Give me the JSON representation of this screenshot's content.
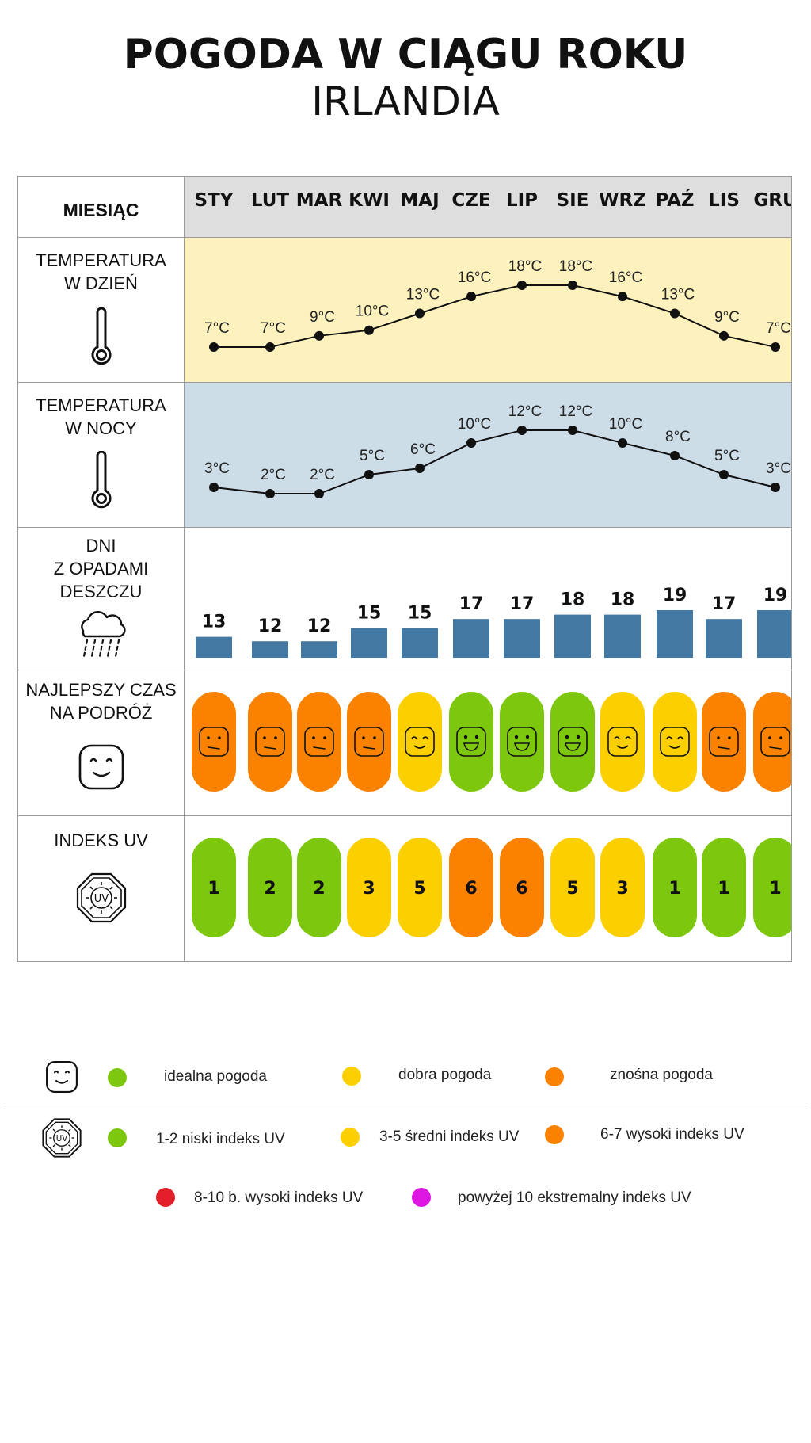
{
  "header": {
    "title": "POGODA W CIĄGU ROKU",
    "subtitle": "IRLANDIA"
  },
  "rows": {
    "month_label": "MIESIĄC",
    "day_temp_label": "TEMPERATURA\nW DZIEŃ",
    "night_temp_label": "TEMPERATURA\nW NOCY",
    "rain_label": "DNI\nZ OPADAMI\nDESZCZU",
    "travel_label": "NAJLEPSZY CZAS\nNA PODRÓŻ",
    "uv_label": "INDEKS UV"
  },
  "icons": {
    "month": "none",
    "day_temp": "thermometer-icon",
    "night_temp": "thermometer-icon",
    "rain": "rain-cloud-icon",
    "travel": "smiley-face-icon",
    "uv": "uv-sun-octagon-icon"
  },
  "colors": {
    "header_bg": "#dedede",
    "day_bg": "#fdf1bd",
    "night_bg": "#cddde8",
    "bar": "#4479a3",
    "ideal": "#7ec70f",
    "good": "#fcd000",
    "ok": "#fa8200",
    "high": "#e3202a",
    "extreme": "#dd16e2"
  },
  "chart_data": {
    "type": "table",
    "months": [
      "STY",
      "LUT",
      "MAR",
      "KWI",
      "MAJ",
      "CZE",
      "LIP",
      "SIE",
      "WRZ",
      "PAŹ",
      "LIS",
      "GRU"
    ],
    "day_temperature": {
      "unit": "°C",
      "values": [
        7,
        7,
        9,
        10,
        13,
        16,
        18,
        18,
        16,
        13,
        9,
        7
      ],
      "labels": [
        "7°C",
        "7°C",
        "9°C",
        "10°C",
        "13°C",
        "16°C",
        "18°C",
        "18°C",
        "16°C",
        "13°C",
        "9°C",
        "7°C"
      ]
    },
    "night_temperature": {
      "unit": "°C",
      "values": [
        3,
        2,
        2,
        5,
        6,
        10,
        12,
        12,
        10,
        8,
        5,
        3
      ],
      "labels": [
        "3°C",
        "2°C",
        "2°C",
        "5°C",
        "6°C",
        "10°C",
        "12°C",
        "12°C",
        "10°C",
        "8°C",
        "5°C",
        "3°C"
      ]
    },
    "rain_days": {
      "values": [
        13,
        12,
        12,
        15,
        15,
        17,
        17,
        18,
        18,
        19,
        17,
        19
      ],
      "labels": [
        "13",
        "12",
        "12",
        "15",
        "15",
        "17",
        "17",
        "18",
        "18",
        "19",
        "17",
        "19"
      ]
    },
    "travel_rating": [
      "ok",
      "ok",
      "ok",
      "ok",
      "good",
      "ideal",
      "ideal",
      "ideal",
      "good",
      "good",
      "ok",
      "ok"
    ],
    "uv_index": {
      "values": [
        1,
        2,
        2,
        3,
        5,
        6,
        6,
        5,
        3,
        1,
        1,
        1
      ],
      "labels": [
        "1",
        "2",
        "2",
        "3",
        "5",
        "6",
        "6",
        "5",
        "3",
        "1",
        "1",
        "1"
      ]
    }
  },
  "legend": {
    "weather": {
      "ideal": "idealna pogoda",
      "good": "dobra pogoda",
      "ok": "znośna pogoda"
    },
    "uv": {
      "low": "1-2 niski indeks UV",
      "medium": "3-5 średni indeks UV",
      "high": "6-7 wysoki indeks UV",
      "very_high": "8-10 b. wysoki indeks UV",
      "extreme": "powyżej 10 ekstremalny indeks UV"
    },
    "uv_icon_text": "UV"
  }
}
